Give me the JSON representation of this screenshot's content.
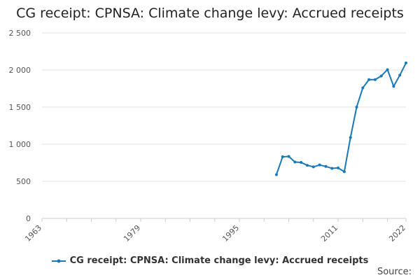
{
  "chart_data": {
    "type": "line",
    "title": "CG receipt: CPNSA: Climate change levy: Accrued receipts",
    "xlabel": "",
    "ylabel": "",
    "xlim": [
      1963,
      2022
    ],
    "ylim": [
      0,
      2500
    ],
    "x_ticks": [
      1963,
      1979,
      1995,
      2011,
      2022
    ],
    "y_ticks": [
      0,
      500,
      1000,
      1500,
      2000,
      2500
    ],
    "y_tick_labels": [
      "0",
      "500",
      "1 000",
      "1 500",
      "2 000",
      "2 500"
    ],
    "legend": "bottom-center",
    "grid": "horizontal",
    "series": [
      {
        "name": "CG receipt: CPNSA: Climate change levy: Accrued receipts",
        "color": "#1779b8",
        "x": [
          2001,
          2002,
          2003,
          2004,
          2005,
          2006,
          2007,
          2008,
          2009,
          2010,
          2011,
          2012,
          2013,
          2014,
          2015,
          2016,
          2017,
          2018,
          2019,
          2020,
          2021,
          2022
        ],
        "values": [
          590,
          830,
          835,
          760,
          755,
          715,
          695,
          720,
          700,
          675,
          680,
          630,
          1090,
          1500,
          1760,
          1870,
          1870,
          1920,
          2005,
          1780,
          1930,
          2095
        ]
      }
    ]
  },
  "source_label": "Source:"
}
